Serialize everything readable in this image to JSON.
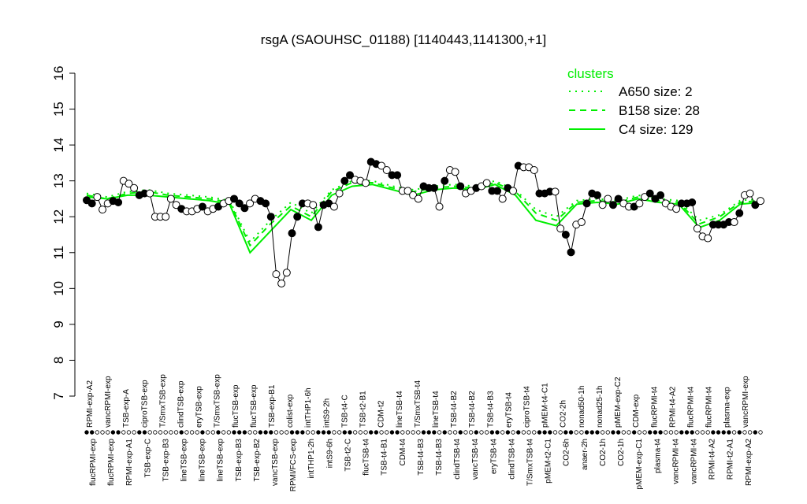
{
  "chart_data": {
    "type": "scatter",
    "title": "rsgA (SAOUHSC_01188) [1140443,1141300,+1]",
    "ylim": [
      7,
      16
    ],
    "yticks": [
      7,
      8,
      9,
      10,
      11,
      12,
      13,
      14,
      15,
      16
    ],
    "grid": false,
    "legend": {
      "title": "clusters",
      "placement": "top-right",
      "entries": [
        {
          "name": "A650 size: 2",
          "style": "dotted"
        },
        {
          "name": "B158 size: 28",
          "style": "dashed"
        },
        {
          "name": "C4 size: 129",
          "style": "solid"
        }
      ]
    },
    "colors": {
      "cluster": "#00ee00",
      "points": "#000000"
    },
    "points": [
      [
        12.46,
        1
      ],
      [
        12.37,
        1
      ],
      [
        12.55,
        0
      ],
      [
        12.2,
        0
      ],
      [
        12.37,
        0
      ],
      [
        12.44,
        1
      ],
      [
        12.4,
        1
      ],
      [
        13.0,
        0
      ],
      [
        12.92,
        0
      ],
      [
        12.8,
        0
      ],
      [
        12.6,
        1
      ],
      [
        12.65,
        1
      ],
      [
        12.65,
        0
      ],
      [
        12.0,
        0
      ],
      [
        12.0,
        0
      ],
      [
        12.0,
        0
      ],
      [
        12.5,
        0
      ],
      [
        12.33,
        0
      ],
      [
        12.22,
        1
      ],
      [
        12.15,
        0
      ],
      [
        12.15,
        0
      ],
      [
        12.22,
        0
      ],
      [
        12.28,
        1
      ],
      [
        12.15,
        0
      ],
      [
        12.22,
        0
      ],
      [
        12.28,
        1
      ],
      [
        12.37,
        0
      ],
      [
        12.44,
        0
      ],
      [
        12.5,
        1
      ],
      [
        12.37,
        1
      ],
      [
        12.24,
        1
      ],
      [
        12.37,
        0
      ],
      [
        12.5,
        0
      ],
      [
        12.44,
        1
      ],
      [
        12.37,
        1
      ],
      [
        12.0,
        1
      ],
      [
        10.4,
        0
      ],
      [
        10.14,
        0
      ],
      [
        10.44,
        0
      ],
      [
        11.54,
        1
      ],
      [
        12.0,
        1
      ],
      [
        12.37,
        1
      ],
      [
        12.37,
        0
      ],
      [
        12.33,
        0
      ],
      [
        11.71,
        1
      ],
      [
        12.33,
        1
      ],
      [
        12.37,
        1
      ],
      [
        12.28,
        0
      ],
      [
        12.65,
        0
      ],
      [
        13.0,
        1
      ],
      [
        13.16,
        1
      ],
      [
        13.03,
        0
      ],
      [
        13.0,
        0
      ],
      [
        12.94,
        0
      ],
      [
        13.53,
        1
      ],
      [
        13.47,
        1
      ],
      [
        13.42,
        0
      ],
      [
        13.3,
        0
      ],
      [
        13.16,
        1
      ],
      [
        13.16,
        1
      ],
      [
        12.72,
        0
      ],
      [
        12.72,
        0
      ],
      [
        12.6,
        0
      ],
      [
        12.5,
        0
      ],
      [
        12.85,
        1
      ],
      [
        12.8,
        1
      ],
      [
        12.8,
        1
      ],
      [
        12.28,
        0
      ],
      [
        13.0,
        1
      ],
      [
        13.3,
        0
      ],
      [
        13.25,
        0
      ],
      [
        12.85,
        1
      ],
      [
        12.65,
        0
      ],
      [
        12.72,
        0
      ],
      [
        12.8,
        1
      ],
      [
        12.85,
        0
      ],
      [
        12.94,
        0
      ],
      [
        12.72,
        1
      ],
      [
        12.72,
        1
      ],
      [
        12.5,
        0
      ],
      [
        12.8,
        1
      ],
      [
        12.72,
        0
      ],
      [
        13.42,
        1
      ],
      [
        13.38,
        0
      ],
      [
        13.38,
        0
      ],
      [
        13.3,
        0
      ],
      [
        12.65,
        1
      ],
      [
        12.65,
        1
      ],
      [
        12.7,
        1
      ],
      [
        12.7,
        0
      ],
      [
        11.67,
        0
      ],
      [
        11.5,
        1
      ],
      [
        11.01,
        1
      ],
      [
        11.78,
        0
      ],
      [
        11.85,
        0
      ],
      [
        12.37,
        1
      ],
      [
        12.65,
        1
      ],
      [
        12.6,
        1
      ],
      [
        12.33,
        0
      ],
      [
        12.5,
        0
      ],
      [
        12.33,
        1
      ],
      [
        12.5,
        1
      ],
      [
        12.37,
        0
      ],
      [
        12.28,
        0
      ],
      [
        12.28,
        1
      ],
      [
        12.37,
        0
      ],
      [
        12.55,
        0
      ],
      [
        12.65,
        1
      ],
      [
        12.5,
        1
      ],
      [
        12.6,
        1
      ],
      [
        12.37,
        0
      ],
      [
        12.28,
        0
      ],
      [
        12.22,
        0
      ],
      [
        12.37,
        1
      ],
      [
        12.37,
        1
      ],
      [
        12.4,
        1
      ],
      [
        11.67,
        0
      ],
      [
        11.45,
        0
      ],
      [
        11.4,
        0
      ],
      [
        11.78,
        1
      ],
      [
        11.78,
        1
      ],
      [
        11.78,
        1
      ],
      [
        11.85,
        1
      ],
      [
        11.85,
        0
      ],
      [
        12.1,
        1
      ],
      [
        12.6,
        0
      ],
      [
        12.65,
        0
      ],
      [
        12.33,
        1
      ],
      [
        12.44,
        0
      ]
    ],
    "clusters": {
      "C4": [
        12.55,
        12.5,
        12.6,
        12.6,
        12.55,
        12.5,
        12.45,
        12.35,
        11.0,
        11.6,
        12.2,
        11.9,
        12.6,
        12.85,
        12.9,
        12.75,
        12.6,
        12.75,
        12.8,
        12.75,
        12.9,
        12.6,
        11.9,
        11.75,
        12.35,
        12.4,
        12.35,
        12.5,
        12.4,
        12.35,
        11.7,
        11.9,
        12.35,
        12.4
      ],
      "B158": [
        12.6,
        12.5,
        12.65,
        12.7,
        12.6,
        12.55,
        12.5,
        12.4,
        11.2,
        11.8,
        12.3,
        12.0,
        12.7,
        12.95,
        12.95,
        12.8,
        12.7,
        12.8,
        12.85,
        12.8,
        12.95,
        12.7,
        12.1,
        11.9,
        12.4,
        12.45,
        12.4,
        12.55,
        12.45,
        12.4,
        11.8,
        12.0,
        12.4,
        12.45
      ],
      "A650": [
        12.65,
        12.55,
        12.7,
        12.75,
        12.65,
        12.6,
        12.55,
        12.45,
        11.3,
        11.9,
        12.4,
        12.1,
        12.75,
        13.0,
        13.0,
        12.85,
        12.75,
        12.85,
        12.9,
        12.85,
        13.0,
        12.75,
        12.2,
        12.0,
        12.45,
        12.5,
        12.45,
        12.6,
        12.5,
        12.45,
        11.9,
        12.05,
        12.45,
        12.5
      ]
    },
    "top_labels": [
      "RPMI-exp-A2",
      "vancRPMI-exp",
      "TSB-exp-A",
      "ciproTSB-exp",
      "T/SmxTSB-exp",
      "clindTSB-exp",
      "eryTSB-exp",
      "T/SmxTSB-exp",
      "flucTSB-exp",
      "flucTSB-exp",
      "TSB-exp-B1",
      "colist-exp",
      "intTHP1-6h",
      "intS9-2h",
      "TSB-t4-C",
      "TSB-t2-B1",
      "CDM-t2",
      "lineTSB-t4",
      "T/SmxTSB-t4",
      "lineTSB-t4",
      "TSB-t4-B2",
      "TSB-t4-B2",
      "TSB-t4-B3",
      "eryTSB-t4",
      "ciproTSB-t4",
      "pMEM-t4-C1",
      "CO2-2h",
      "nonad50-1h",
      "nonad25-1h",
      "pMEM-exp-C2",
      "CDM-exp",
      "flucRPMI-t4",
      "RPMI-t4-A2",
      "flucRPMI-t4",
      "flucRPMI-t4",
      "plasma-exp",
      "vancRPMI-exp"
    ],
    "bottom_labels": [
      "flucRPMI-exp",
      "flucRPMI-exp",
      "RPMI-exp-A1",
      "TSB-exp-C",
      "TSB-exp-B3",
      "lineTSB-exp",
      "lineTSB-exp",
      "lineTSB-exp",
      "TSB-exp-B3",
      "TSB-exp-B2",
      "vancTSB-exp",
      "RPMI/FCS-exp",
      "intTHP1-2h",
      "intS9-6h",
      "TSB-t2-C",
      "flucTSB-t4",
      "TSB-t4-B1",
      "CDM-t4",
      "TSB-t4-B3",
      "TSB-t4-B3",
      "clindTSB-t4",
      "vancTSB-t4",
      "eryTSB-t4",
      "clindTSB-t4",
      "T/SmxTSB-t4",
      "pMEM-t2-C1",
      "CO2-6h",
      "anaer-2h",
      "CO2-1h",
      "CO2-1h",
      "pMEM-exp-C1",
      "plasma-t4",
      "vancRPMI-t4",
      "vancRPMI-t4",
      "RPMI-t4-A2",
      "RPMI-t2-A1",
      "RPMI-exp-A2"
    ]
  }
}
